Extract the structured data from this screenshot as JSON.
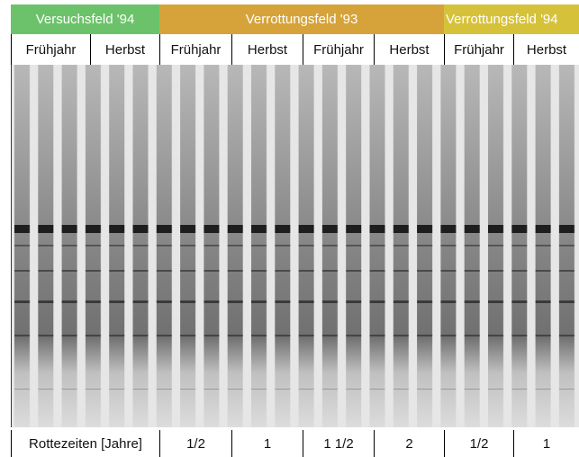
{
  "header": {
    "groups": [
      "Versuchsfeld '94",
      "Verrottungsfeld '93",
      "Verrottungsfeld '94"
    ],
    "seasons": [
      "Frühjahr",
      "Herbst",
      "Frühjahr",
      "Herbst",
      "Frühjahr",
      "Herbst",
      "Frühjahr",
      "Herbst"
    ]
  },
  "footer": {
    "label": "Rottezeiten [Jahre]",
    "times": [
      "1/2",
      "1",
      "1 1/2",
      "2",
      "1/2",
      "1"
    ]
  }
}
